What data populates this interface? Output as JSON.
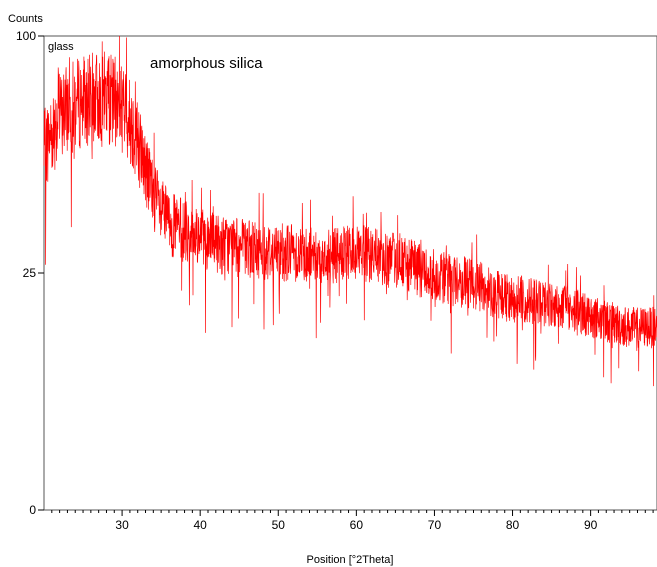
{
  "chart_data": {
    "type": "line",
    "title": "",
    "xlabel": "Position [°2Theta]",
    "ylabel": "Counts",
    "xlim": [
      20,
      98.5
    ],
    "ylim": [
      0,
      100
    ],
    "x_ticks": [
      30,
      40,
      50,
      60,
      70,
      80,
      90
    ],
    "y_ticks": [
      0,
      25,
      100
    ],
    "y_tick_labels": [
      "0",
      "25",
      "100"
    ],
    "y_scale": "sqrt",
    "grid": false,
    "annotations": [
      {
        "text": "glass",
        "anchor": "top-left"
      },
      {
        "text": "amorphous silica",
        "anchor": "top-center-left"
      }
    ],
    "series": [
      {
        "color": "#ff0000",
        "x": [
          20,
          22,
          24,
          26,
          28,
          30,
          31,
          32,
          33,
          34,
          35,
          36,
          38,
          40,
          42,
          45,
          48,
          50,
          52,
          55,
          58,
          60,
          62,
          65,
          68,
          70,
          72,
          75,
          78,
          80,
          82,
          85,
          88,
          90,
          92,
          95,
          98.5
        ],
        "y": [
          58,
          70,
          74,
          76,
          77,
          73,
          68,
          62,
          52,
          45,
          40,
          37,
          35,
          33,
          32,
          31,
          30,
          30,
          30,
          29,
          29,
          30,
          29,
          28,
          26,
          25,
          24,
          23,
          21,
          20,
          20,
          19,
          18,
          17,
          16,
          15,
          15
        ]
      }
    ]
  }
}
